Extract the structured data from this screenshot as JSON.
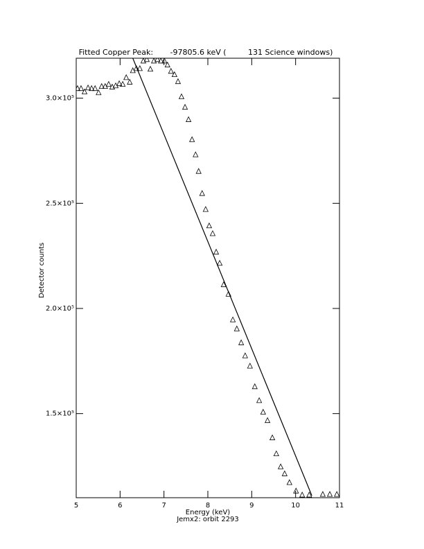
{
  "chart_data": {
    "type": "scatter",
    "title": "Fitted Copper Peak:       -97805.6 keV (         131 Science windows)",
    "x_label": "Energy (keV)",
    "x_sublabel": "Jemx2: orbit 2293",
    "y_label": "Detector counts",
    "xlim": [
      5,
      11
    ],
    "xticks": [
      5,
      6,
      7,
      8,
      9,
      10,
      11
    ],
    "ylim": [
      110000,
      319000
    ],
    "yticks": [
      {
        "value": 150000,
        "label": "1.5×10⁵"
      },
      {
        "value": 200000,
        "label": "2.0×10⁵"
      },
      {
        "value": 250000,
        "label": "2.5×10⁵"
      },
      {
        "value": 300000,
        "label": "3.0×10⁵"
      }
    ],
    "series": [
      {
        "color": "#000000",
        "marker": "triangle",
        "x": [
          5.03,
          5.11,
          5.19,
          5.27,
          5.35,
          5.43,
          5.51,
          5.58,
          5.66,
          5.74,
          5.82,
          5.9,
          5.98,
          6.06,
          6.14,
          6.22,
          6.29,
          6.37,
          6.45,
          6.53,
          6.61,
          6.69,
          6.77,
          6.85,
          6.93,
          7.01,
          7.08,
          7.16,
          7.24,
          7.32,
          7.4,
          7.48,
          7.56,
          7.64,
          7.72,
          7.79,
          7.87,
          7.95,
          8.03,
          8.11,
          8.19,
          8.27,
          8.36,
          8.47,
          8.57,
          8.66,
          8.76,
          8.85,
          8.96,
          9.07,
          9.17,
          9.26,
          9.36,
          9.47,
          9.56,
          9.66,
          9.75,
          9.86,
          10.01,
          10.15,
          10.31,
          10.62,
          10.78,
          10.94
        ],
        "values": [
          304600,
          304600,
          303000,
          304900,
          304600,
          304600,
          302600,
          305600,
          305600,
          306600,
          305300,
          305900,
          306900,
          306600,
          309800,
          307600,
          313100,
          314100,
          314100,
          317700,
          318400,
          313800,
          317700,
          318400,
          317700,
          317700,
          315800,
          312800,
          311200,
          307900,
          300700,
          295700,
          289800,
          280300,
          273100,
          265200,
          254700,
          247100,
          239300,
          235600,
          226800,
          221500,
          211300,
          206800,
          194600,
          190300,
          183700,
          177500,
          172600,
          162800,
          156200,
          150700,
          146700,
          138500,
          130900,
          124700,
          121400,
          117200,
          113200,
          111300,
          111300,
          111600,
          111600,
          111600
        ]
      },
      {
        "color": "#000000",
        "marker": "line",
        "x": [
          6.29,
          10.37
        ],
        "values": [
          319000,
          111000
        ]
      }
    ]
  }
}
